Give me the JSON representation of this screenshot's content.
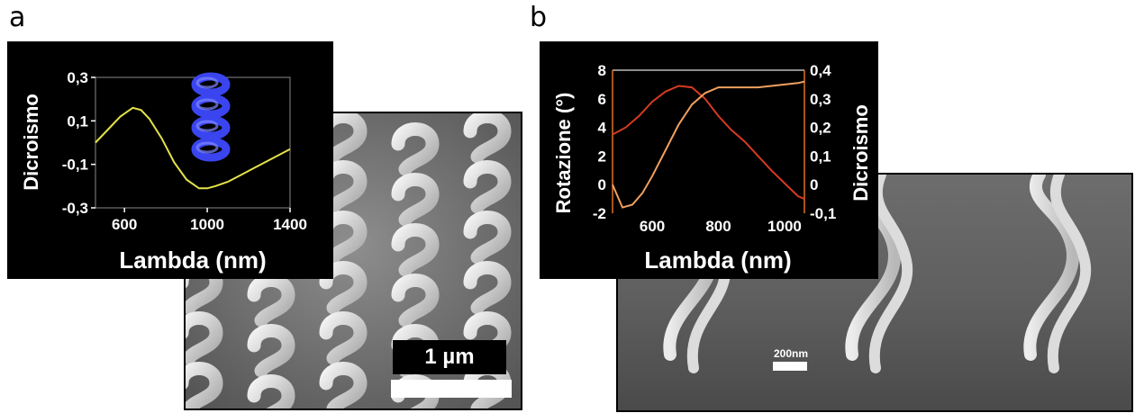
{
  "panels": {
    "a": {
      "letter": "a",
      "scale_bar": "1 µm"
    },
    "b": {
      "letter": "b",
      "scale_bar": "200nm"
    }
  },
  "colors": {
    "background": "#000000",
    "text": "#ffffff",
    "a_curve": "#e4e24a",
    "b_rotation": "#d63a22",
    "b_dichroism": "#f0a060",
    "helix": "#3a45f0"
  },
  "chart_data": [
    {
      "type": "line",
      "xlabel": "Lambda (nm)",
      "ylabel": "Dicroismo",
      "xlim": [
        460,
        1400
      ],
      "ylim": [
        -0.3,
        0.3
      ],
      "xticks": [
        "600",
        "1000",
        "1400"
      ],
      "yticks": [
        "0,3",
        "0,1",
        "-0,1",
        "-0,3"
      ],
      "inset_icon": "helix-icon",
      "series": [
        {
          "x": [
            460,
            520,
            580,
            640,
            680,
            720,
            780,
            840,
            900,
            960,
            1000,
            1040,
            1100,
            1160,
            1220,
            1280,
            1340,
            1400
          ],
          "y": [
            0.0,
            0.06,
            0.12,
            0.16,
            0.15,
            0.11,
            0.02,
            -0.09,
            -0.17,
            -0.21,
            -0.21,
            -0.2,
            -0.18,
            -0.15,
            -0.12,
            -0.09,
            -0.06,
            -0.03
          ]
        }
      ]
    },
    {
      "type": "line",
      "xlabel": "Lambda (nm)",
      "ylabel": "Rotazione  (°)",
      "ylabel2": "Dicroismo",
      "xlim": [
        480,
        1060
      ],
      "ylim": [
        -2,
        8
      ],
      "y2lim": [
        -0.1,
        0.4
      ],
      "xticks": [
        "600",
        "800",
        "1000"
      ],
      "yticks": [
        "8",
        "6",
        "4",
        "2",
        "0",
        "-2"
      ],
      "y2ticks": [
        "0,4",
        "0,3",
        "0,2",
        "0,1",
        "0",
        "-0,1"
      ],
      "series": [
        {
          "axis": "left",
          "x": [
            480,
            520,
            560,
            600,
            640,
            680,
            720,
            760,
            800,
            840,
            880,
            920,
            960,
            1000,
            1040,
            1060
          ],
          "y": [
            3.5,
            4.0,
            4.8,
            5.8,
            6.5,
            6.9,
            6.8,
            6.0,
            4.8,
            3.8,
            3.0,
            2.0,
            1.0,
            0.1,
            -0.8,
            -1.0
          ]
        },
        {
          "axis": "right",
          "x": [
            480,
            510,
            540,
            570,
            600,
            640,
            680,
            720,
            760,
            800,
            840,
            880,
            920,
            960,
            1000,
            1040,
            1060
          ],
          "y": [
            0.0,
            -0.08,
            -0.07,
            -0.03,
            0.03,
            0.12,
            0.21,
            0.28,
            0.32,
            0.34,
            0.34,
            0.34,
            0.34,
            0.345,
            0.35,
            0.355,
            0.36
          ]
        }
      ]
    }
  ]
}
